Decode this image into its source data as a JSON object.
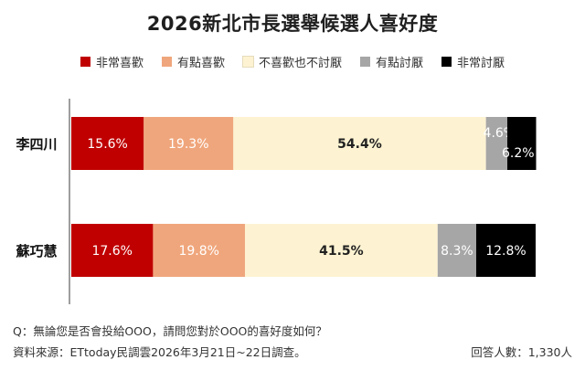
{
  "title": "2026新北市長選舉候選人喜好度",
  "legend": [
    {
      "label": "非常喜歡",
      "color": "#c00000"
    },
    {
      "label": "有點喜歡",
      "color": "#f0a67c"
    },
    {
      "label": "不喜歡也不討厭",
      "color": "#fdf3d2"
    },
    {
      "label": "有點討厭",
      "color": "#a6a6a6"
    },
    {
      "label": "非常討厭",
      "color": "#000000"
    }
  ],
  "chart_data": {
    "type": "bar",
    "orientation": "horizontal",
    "stacked": true,
    "categories": [
      "李四川",
      "蘇巧慧"
    ],
    "series": [
      {
        "name": "非常喜歡",
        "color": "#c00000",
        "label_color": "#ffffff",
        "values": [
          15.6,
          17.6
        ],
        "labels": [
          "15.6%",
          "17.6%"
        ]
      },
      {
        "name": "有點喜歡",
        "color": "#f0a67c",
        "label_color": "#ffffff",
        "values": [
          19.3,
          19.8
        ],
        "labels": [
          "19.3%",
          "19.8%"
        ]
      },
      {
        "name": "不喜歡也不討厭",
        "color": "#fdf3d2",
        "label_color": "#222222",
        "values": [
          54.4,
          41.5
        ],
        "labels": [
          "54.4%",
          "41.5%"
        ]
      },
      {
        "name": "有點討厭",
        "color": "#a6a6a6",
        "label_color": "#ffffff",
        "values": [
          4.6,
          8.3
        ],
        "labels": [
          "4.6%",
          "8.3%"
        ]
      },
      {
        "name": "非常討厭",
        "color": "#000000",
        "label_color": "#ffffff",
        "values": [
          6.2,
          12.8
        ],
        "labels": [
          "6.2%",
          "12.8%"
        ]
      }
    ],
    "xlim": [
      0,
      100
    ],
    "grid": false,
    "legend_position": "top"
  },
  "footer": {
    "question": "Q：無論您是否會投給OOO，請問您對於OOO的喜好度如何？",
    "source": "資料來源：ETtoday民調雲2026年3月21日~22日調查。",
    "sample": "回答人數：1,330人"
  }
}
